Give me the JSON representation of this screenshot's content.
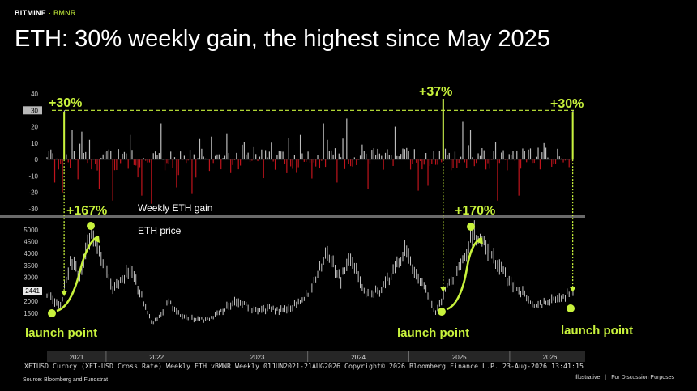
{
  "brand": {
    "name": "BITMINE",
    "sep": " · ",
    "ticker": "BMNR"
  },
  "title": "ETH: 30% weekly gain, the highest since May 2025",
  "source": "Source: Bloomberg and Fundstrat",
  "footer": {
    "left": "Illustrative",
    "right": "For Discussion Purposes"
  },
  "colors": {
    "accent": "#c8f23c",
    "positive": "#bdbdbd",
    "negative": "#c0141c",
    "background": "#000000"
  },
  "chart_data": [
    {
      "type": "bar",
      "panel_label": "Weekly ETH gain",
      "ylim": [
        -35,
        42
      ],
      "yticks": [
        40,
        30,
        20,
        10,
        0,
        -10,
        -20,
        -30
      ],
      "highlight_tick": "30",
      "reference_line": 30,
      "samples": [
        {
          "x": "2021-06-07",
          "y": 5
        },
        {
          "x": "2021-06-28",
          "y": -14
        },
        {
          "x": "2021-07-26",
          "y": -20
        },
        {
          "x": "2021-08-02",
          "y": 30
        },
        {
          "x": "2021-08-30",
          "y": 18
        },
        {
          "x": "2021-09-20",
          "y": -12
        },
        {
          "x": "2021-10-04",
          "y": 17
        },
        {
          "x": "2021-11-01",
          "y": 12
        },
        {
          "x": "2021-12-06",
          "y": -18
        },
        {
          "x": "2022-01-24",
          "y": -25
        },
        {
          "x": "2022-03-28",
          "y": 15
        },
        {
          "x": "2022-05-09",
          "y": -22
        },
        {
          "x": "2022-06-13",
          "y": -27
        },
        {
          "x": "2022-07-18",
          "y": 22
        },
        {
          "x": "2022-09-12",
          "y": -17
        },
        {
          "x": "2022-11-07",
          "y": -21
        },
        {
          "x": "2023-01-16",
          "y": 14
        },
        {
          "x": "2023-03-13",
          "y": 16
        },
        {
          "x": "2023-06-19",
          "y": 8
        },
        {
          "x": "2023-10-23",
          "y": 13
        },
        {
          "x": "2023-12-04",
          "y": 15
        },
        {
          "x": "2024-02-26",
          "y": 22
        },
        {
          "x": "2024-03-11",
          "y": 12
        },
        {
          "x": "2024-04-15",
          "y": -14
        },
        {
          "x": "2024-05-20",
          "y": 25
        },
        {
          "x": "2024-08-05",
          "y": -18
        },
        {
          "x": "2024-11-11",
          "y": 20
        },
        {
          "x": "2025-02-03",
          "y": -19
        },
        {
          "x": "2025-03-10",
          "y": -16
        },
        {
          "x": "2025-05-05",
          "y": 37
        },
        {
          "x": "2025-07-14",
          "y": 23
        },
        {
          "x": "2025-08-11",
          "y": 18
        },
        {
          "x": "2025-11-17",
          "y": -25
        },
        {
          "x": "2026-02-02",
          "y": -22
        },
        {
          "x": "2026-05-04",
          "y": 10
        },
        {
          "x": "2026-08-17",
          "y": 30
        }
      ],
      "annotations": [
        {
          "date": "2021-08-02",
          "label": "+30%"
        },
        {
          "date": "2025-05-05",
          "label": "+37%"
        },
        {
          "date": "2026-08-17",
          "label": "+30%"
        }
      ]
    },
    {
      "type": "line",
      "panel_label": "ETH price",
      "ylim": [
        1050,
        5300
      ],
      "yticks": [
        5000,
        4500,
        4000,
        3500,
        3000,
        2500,
        2000,
        1500
      ],
      "last_value": "2441",
      "x_labels": [
        "2021",
        "2022",
        "2023",
        "2024",
        "2025",
        "2026"
      ],
      "points": [
        {
          "x": "2021-06-01",
          "y": 2300
        },
        {
          "x": "2021-07-20",
          "y": 1750
        },
        {
          "x": "2021-08-15",
          "y": 3200
        },
        {
          "x": "2021-09-01",
          "y": 3800
        },
        {
          "x": "2021-09-25",
          "y": 2900
        },
        {
          "x": "2021-11-08",
          "y": 4800
        },
        {
          "x": "2021-12-15",
          "y": 3900
        },
        {
          "x": "2022-01-24",
          "y": 2450
        },
        {
          "x": "2022-04-01",
          "y": 3450
        },
        {
          "x": "2022-05-15",
          "y": 2000
        },
        {
          "x": "2022-06-18",
          "y": 1000
        },
        {
          "x": "2022-08-15",
          "y": 1950
        },
        {
          "x": "2022-10-01",
          "y": 1350
        },
        {
          "x": "2022-12-31",
          "y": 1200
        },
        {
          "x": "2023-04-15",
          "y": 2000
        },
        {
          "x": "2023-06-15",
          "y": 1700
        },
        {
          "x": "2023-10-15",
          "y": 1600
        },
        {
          "x": "2023-12-31",
          "y": 2300
        },
        {
          "x": "2024-03-11",
          "y": 4050
        },
        {
          "x": "2024-05-01",
          "y": 2900
        },
        {
          "x": "2024-05-27",
          "y": 3850
        },
        {
          "x": "2024-08-05",
          "y": 2300
        },
        {
          "x": "2024-09-20",
          "y": 2400
        },
        {
          "x": "2024-12-16",
          "y": 4050
        },
        {
          "x": "2025-02-20",
          "y": 2700
        },
        {
          "x": "2025-04-09",
          "y": 1500
        },
        {
          "x": "2025-05-12",
          "y": 2500
        },
        {
          "x": "2025-07-15",
          "y": 3600
        },
        {
          "x": "2025-08-24",
          "y": 4900
        },
        {
          "x": "2025-10-15",
          "y": 4100
        },
        {
          "x": "2025-12-20",
          "y": 3000
        },
        {
          "x": "2026-02-01",
          "y": 2500
        },
        {
          "x": "2026-04-01",
          "y": 1800
        },
        {
          "x": "2026-06-01",
          "y": 2000
        },
        {
          "x": "2026-08-21",
          "y": 2441
        }
      ],
      "annotations": [
        {
          "date": "2021-11-08",
          "label": "+167%"
        },
        {
          "date": "2025-08-24",
          "label": "+170%"
        },
        {
          "date": "2021-07-20",
          "label": "launch point"
        },
        {
          "date": "2025-04-09",
          "label": "launch point"
        },
        {
          "date": "2026-08-17",
          "label": "launch point"
        }
      ]
    }
  ],
  "caption": "XETUSD Curncy (XET-USD Cross Rate) Weekly ETH vBMNR Weekly 01JUN2021-21AUG2026    Copyright© 2026 Bloomberg Finance L.P.    23-Aug-2026 13:41:15"
}
